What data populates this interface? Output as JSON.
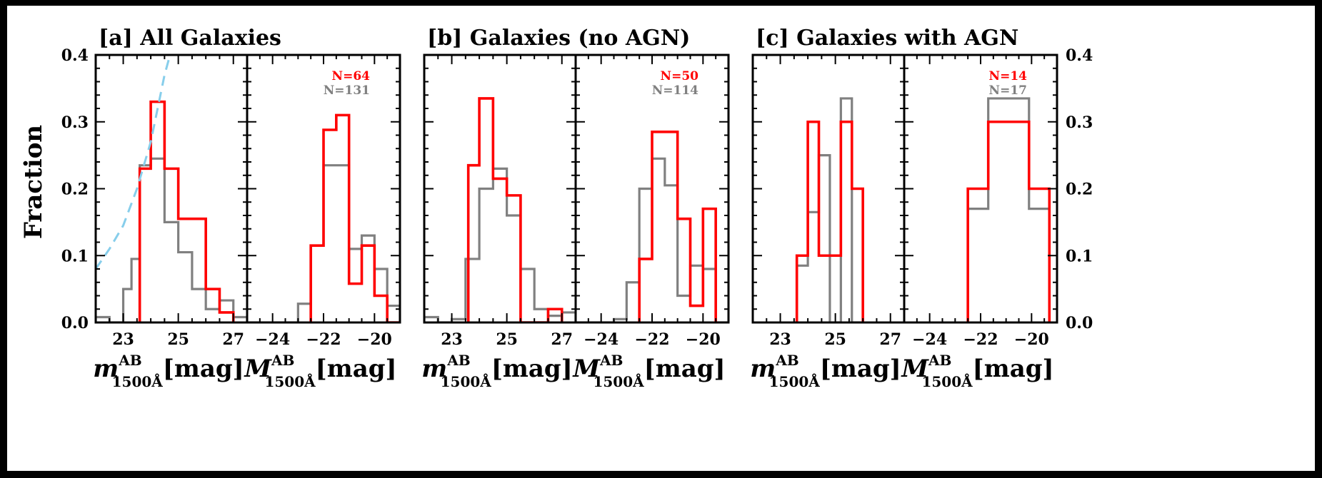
{
  "figure": {
    "ylabel": "Fraction",
    "colors": {
      "primary": "#ff0000",
      "comparison": "#808080",
      "fit": "#87ceeb",
      "frame": "#000000"
    }
  },
  "chart_data": [
    {
      "type": "step",
      "group_title": "[a] All Galaxies",
      "xlabel": {
        "sym": "m",
        "sup": "AB",
        "sub": "1500Å",
        "unit": "[mag]"
      },
      "xlim": [
        22,
        27.5
      ],
      "ylim": [
        0,
        0.4
      ],
      "xticks": [
        23,
        25,
        27
      ],
      "yticks": [
        0.0,
        0.1,
        0.2,
        0.3,
        0.4
      ],
      "ytick_labels": [
        "0.0",
        "0.1",
        "0.2",
        "0.3",
        "0.4"
      ],
      "counts": [],
      "series": [
        {
          "name": "comparison",
          "color": "#808080",
          "edges": [
            22,
            22.5,
            23,
            23.3,
            23.6,
            24.0,
            24.5,
            25.0,
            25.5,
            26.0,
            26.5,
            27.0,
            27.5
          ],
          "values": [
            0.008,
            0.0,
            0.05,
            0.095,
            0.235,
            0.245,
            0.15,
            0.105,
            0.05,
            0.02,
            0.033,
            0.008
          ]
        },
        {
          "name": "primary",
          "color": "#ff0000",
          "edges": [
            23.6,
            24.0,
            24.5,
            25.0,
            25.5,
            26.0,
            26.5,
            27.0
          ],
          "values": [
            0.23,
            0.33,
            0.23,
            0.155,
            0.155,
            0.05,
            0.015
          ]
        },
        {
          "name": "fit",
          "color": "#87ceeb",
          "style": "dashed",
          "x": [
            22,
            22.5,
            23,
            23.5,
            24,
            24.5,
            24.7
          ],
          "y": [
            0.08,
            0.11,
            0.145,
            0.2,
            0.27,
            0.37,
            0.4
          ]
        }
      ]
    },
    {
      "type": "step",
      "xlabel": {
        "sym": "M",
        "sup": "AB",
        "sub": "1500Å",
        "unit": "[mag]"
      },
      "xlim": [
        -25,
        -19
      ],
      "ylim": [
        0,
        0.4
      ],
      "xticks": [
        -24,
        -22,
        -20
      ],
      "counts": [
        {
          "text": "N=64",
          "color": "#ff0000"
        },
        {
          "text": "N=131",
          "color": "#808080"
        }
      ],
      "series": [
        {
          "name": "comparison",
          "color": "#808080",
          "edges": [
            -25,
            -24.4,
            -24.0,
            -23.5,
            -23.0,
            -22.5,
            -22.0,
            -21.5,
            -21.0,
            -20.5,
            -20.0,
            -19.5,
            -19.0
          ],
          "values": [
            0.0,
            0.0,
            0.0,
            0.0,
            0.028,
            0.115,
            0.235,
            0.235,
            0.11,
            0.13,
            0.08,
            0.025
          ]
        },
        {
          "name": "primary",
          "color": "#ff0000",
          "edges": [
            -22.5,
            -22.0,
            -21.5,
            -21.0,
            -20.5,
            -20.0,
            -19.5,
            -19.0
          ],
          "values": [
            0.115,
            0.288,
            0.31,
            0.058,
            0.115,
            0.04,
            0.0
          ]
        }
      ]
    },
    {
      "type": "step",
      "group_title": "[b] Galaxies (no AGN)",
      "xlabel": {
        "sym": "m",
        "sup": "AB",
        "sub": "1500Å",
        "unit": "[mag]"
      },
      "xlim": [
        22,
        27.5
      ],
      "ylim": [
        0,
        0.4
      ],
      "xticks": [
        23,
        25,
        27
      ],
      "counts": [],
      "series": [
        {
          "name": "comparison",
          "color": "#808080",
          "edges": [
            22,
            22.5,
            23,
            23.5,
            24.0,
            24.5,
            25.0,
            25.5,
            26.0,
            26.5,
            27.0,
            27.5
          ],
          "values": [
            0.008,
            0.0,
            0.005,
            0.095,
            0.2,
            0.23,
            0.16,
            0.08,
            0.02,
            0.01,
            0.015
          ]
        },
        {
          "name": "primary",
          "color": "#ff0000",
          "edges": [
            23.6,
            24.0,
            24.5,
            25.0,
            25.5,
            26.0,
            26.5,
            27.0
          ],
          "values": [
            0.235,
            0.335,
            0.215,
            0.19,
            0.0,
            0.0,
            0.02
          ]
        }
      ]
    },
    {
      "type": "step",
      "xlabel": {
        "sym": "M",
        "sup": "AB",
        "sub": "1500Å",
        "unit": "[mag]"
      },
      "xlim": [
        -25,
        -19
      ],
      "ylim": [
        0,
        0.4
      ],
      "xticks": [
        -24,
        -22,
        -20
      ],
      "counts": [
        {
          "text": "N=50",
          "color": "#ff0000"
        },
        {
          "text": "N=114",
          "color": "#808080"
        }
      ],
      "series": [
        {
          "name": "comparison",
          "color": "#808080",
          "edges": [
            -25,
            -24.4,
            -24.0,
            -23.5,
            -23.0,
            -22.5,
            -22.0,
            -21.5,
            -21.0,
            -20.5,
            -20.0,
            -19.5,
            -19.0
          ],
          "values": [
            0.0,
            0.0,
            0.0,
            0.005,
            0.06,
            0.2,
            0.245,
            0.205,
            0.04,
            0.085,
            0.08,
            0.0
          ]
        },
        {
          "name": "primary",
          "color": "#ff0000",
          "edges": [
            -22.5,
            -22.0,
            -21.0,
            -20.5,
            -20.0,
            -19.5
          ],
          "values": [
            0.095,
            0.285,
            0.155,
            0.025,
            0.17
          ]
        }
      ]
    },
    {
      "type": "step",
      "group_title": "[c] Galaxies with AGN",
      "xlabel": {
        "sym": "m",
        "sup": "AB",
        "sub": "1500Å",
        "unit": "[mag]"
      },
      "xlim": [
        22,
        27.5
      ],
      "ylim": [
        0,
        0.4
      ],
      "xticks": [
        23,
        25,
        27
      ],
      "counts": [],
      "series": [
        {
          "name": "comparison",
          "color": "#808080",
          "edges": [
            23.6,
            24.0,
            24.4,
            24.8,
            25.2,
            25.6,
            26.0
          ],
          "values": [
            0.085,
            0.165,
            0.25,
            0.0,
            0.335,
            0.0
          ]
        },
        {
          "name": "primary",
          "color": "#ff0000",
          "edges": [
            23.6,
            24.0,
            24.4,
            24.8,
            25.2,
            25.6,
            26.0
          ],
          "values": [
            0.1,
            0.3,
            0.1,
            0.1,
            0.3,
            0.2
          ]
        }
      ]
    },
    {
      "type": "step",
      "xlabel": {
        "sym": "M",
        "sup": "AB",
        "sub": "1500Å",
        "unit": "[mag]"
      },
      "xlim": [
        -25,
        -19
      ],
      "ylim": [
        0,
        0.4
      ],
      "xticks": [
        -24,
        -22,
        -20
      ],
      "right_yticks": [
        0.0,
        0.1,
        0.2,
        0.3,
        0.4
      ],
      "right_ytick_labels": [
        "0.0",
        "0.1",
        "0.2",
        "0.3",
        "0.4"
      ],
      "counts": [
        {
          "text": "N=14",
          "color": "#ff0000"
        },
        {
          "text": "N=17",
          "color": "#808080"
        }
      ],
      "series": [
        {
          "name": "comparison",
          "color": "#808080",
          "edges": [
            -22.5,
            -21.7,
            -20.1,
            -19.3
          ],
          "values": [
            0.17,
            0.335,
            0.17
          ]
        },
        {
          "name": "primary",
          "color": "#ff0000",
          "edges": [
            -22.5,
            -21.7,
            -20.1,
            -19.3
          ],
          "values": [
            0.2,
            0.3,
            0.2
          ]
        }
      ]
    }
  ]
}
